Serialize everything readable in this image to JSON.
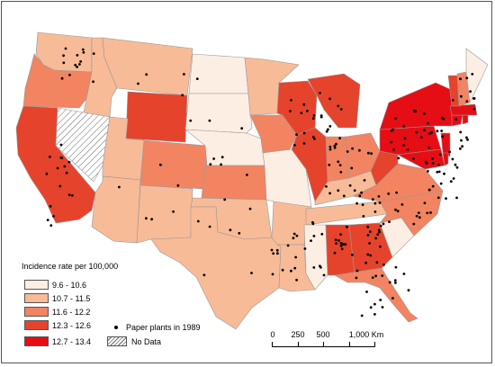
{
  "map": {
    "legend_title": "Incidence rate per 100,000",
    "classes": [
      {
        "label": "9.6 - 10.6",
        "color": "#fdeee3"
      },
      {
        "label": "10.7 - 11.5",
        "color": "#f8bb97"
      },
      {
        "label": "11.6 - 12.2",
        "color": "#f28462"
      },
      {
        "label": "12.3 - 12.6",
        "color": "#e6432c"
      },
      {
        "label": "12.7 - 13.4",
        "color": "#e50e14"
      }
    ],
    "points_label": "Paper plants in 1989",
    "no_data_label": "No Data",
    "scale": {
      "ticks": [
        "0",
        "250",
        "500",
        "1,000 Km"
      ]
    }
  }
}
